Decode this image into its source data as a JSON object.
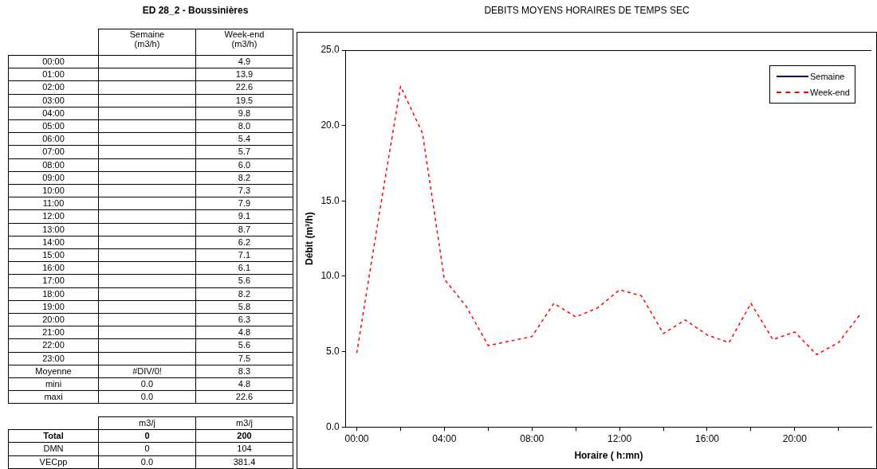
{
  "chart_data": {
    "type": "line",
    "title": "DEBITS MOYENS HORAIRES DE TEMPS SEC",
    "subtitle": "ED 28_2 - Boussinières",
    "xlabel": "Horaire ( h:mn)",
    "ylabel": "Débit (m³/h)",
    "x": [
      0,
      1,
      2,
      3,
      4,
      5,
      6,
      7,
      8,
      9,
      10,
      11,
      12,
      13,
      14,
      15,
      16,
      17,
      18,
      19,
      20,
      21,
      22,
      23
    ],
    "xlim": [
      -0.5,
      23.5
    ],
    "xticks": [
      {
        "value": 0,
        "label": "00:00"
      },
      {
        "value": 2,
        "label": null
      },
      {
        "value": 4,
        "label": "04:00"
      },
      {
        "value": 6,
        "label": null
      },
      {
        "value": 8,
        "label": "08:00"
      },
      {
        "value": 10,
        "label": null
      },
      {
        "value": 12,
        "label": "12:00"
      },
      {
        "value": 14,
        "label": null
      },
      {
        "value": 16,
        "label": "16:00"
      },
      {
        "value": 18,
        "label": null
      },
      {
        "value": 20,
        "label": "20:00"
      },
      {
        "value": 22,
        "label": null
      }
    ],
    "series": [
      {
        "name": "Semaine",
        "color": "#000080",
        "line_style": "solid",
        "values": [
          null,
          null,
          null,
          null,
          null,
          null,
          null,
          null,
          null,
          null,
          null,
          null,
          null,
          null,
          null,
          null,
          null,
          null,
          null,
          null,
          null,
          null,
          null,
          null
        ]
      },
      {
        "name": "Week-end",
        "color": "#ff0000",
        "line_style": "dashed",
        "values": [
          4.9,
          13.9,
          22.6,
          19.5,
          9.8,
          8.0,
          5.4,
          5.7,
          6.0,
          8.2,
          7.3,
          7.9,
          9.1,
          8.7,
          6.2,
          7.1,
          6.1,
          5.6,
          8.2,
          5.8,
          6.3,
          4.8,
          5.6,
          7.5
        ]
      }
    ],
    "ylim": [
      0,
      25
    ],
    "yticks": [
      {
        "value": 0,
        "label": "0.0"
      },
      {
        "value": 5,
        "label": "5.0"
      },
      {
        "value": 10,
        "label": "10.0"
      },
      {
        "value": 15,
        "label": "15.0"
      },
      {
        "value": 20,
        "label": "20.0"
      },
      {
        "value": 25,
        "label": "25.0"
      }
    ],
    "grid": false,
    "legend": "top right",
    "marker": "none",
    "annotations": [
      "(m3/h)",
      "00:00\t\t4.9",
      "01:00\t\t13.9",
      "02:00\t\t22.6",
      "03:00\t\t19.5",
      "04:00\t\t9.8",
      "05:00\t\t8.0",
      "06:00\t\t5.4",
      "07:00\t\t5.7",
      "08:00\t\t6.0",
      "09:00\t\t8.2",
      "10:00\t\t7.3",
      "11:00\t\t7.9",
      "12:00\t\t9.1",
      "13:00\t\t8.7",
      "14:00\t\t6.2",
      "15:00\t\t7.1",
      "16:00\t\t6.1",
      "17:00\t\t5.6",
      "18:00\t\t8.2",
      "19:00\t\t5.8",
      "20:00\t\t6.3",
      "21:00\t\t4.8",
      "22:00\t\t5.6",
      "23:00\t\t7.5",
      "Moyenne\t#DIV/0!\t8.3",
      "mini\t0.0\t4.8",
      "maxi\t0.0\t22.6",
      "\tm3/j\tm3/j",
      "Total\t0\t200",
      "DMN\t0\t104",
      "VECpp\t0.0\t381.4"
    ]
  }
}
